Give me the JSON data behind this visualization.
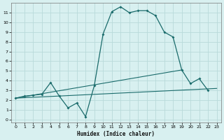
{
  "title": "",
  "xlabel": "Humidex (Indice chaleur)",
  "ylabel": "",
  "bg_color": "#d8f0f0",
  "grid_color": "#b8dada",
  "line_color": "#1a6b6b",
  "xlim": [
    -0.5,
    23.5
  ],
  "ylim": [
    -0.3,
    12.0
  ],
  "xticks": [
    0,
    1,
    2,
    3,
    4,
    5,
    6,
    7,
    8,
    9,
    10,
    11,
    12,
    13,
    14,
    15,
    16,
    17,
    18,
    19,
    20,
    21,
    22,
    23
  ],
  "yticks": [
    0,
    1,
    2,
    3,
    4,
    5,
    6,
    7,
    8,
    9,
    10,
    11
  ],
  "main_series": {
    "x": [
      0,
      1,
      2,
      3,
      4,
      5,
      6,
      7,
      8,
      9,
      10,
      11,
      12,
      13,
      14,
      15,
      16,
      17,
      18,
      19,
      20,
      21,
      22
    ],
    "y": [
      2.2,
      2.4,
      2.5,
      2.6,
      3.8,
      2.4,
      1.2,
      1.7,
      0.3,
      3.5,
      8.8,
      11.1,
      11.6,
      11.0,
      11.2,
      11.2,
      10.7,
      9.0,
      8.5,
      5.1,
      3.7,
      4.2,
      3.0
    ]
  },
  "trend1": {
    "x": [
      0,
      23
    ],
    "y": [
      2.2,
      3.2
    ]
  },
  "trend2": {
    "x": [
      0,
      19
    ],
    "y": [
      2.2,
      5.1
    ]
  }
}
